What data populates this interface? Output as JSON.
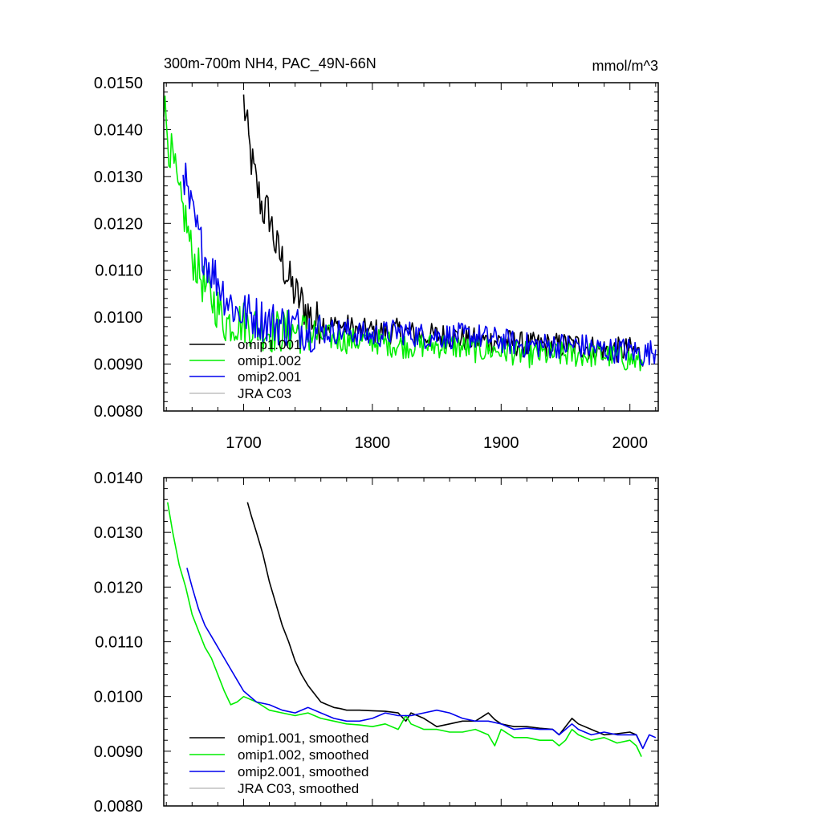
{
  "chart_data": [
    {
      "type": "line",
      "title": "300m-700m NH4, PAC_49N-66N",
      "units": "mmol/m^3",
      "xlim": [
        1638,
        2022
      ],
      "ylim": [
        0.008,
        0.015
      ],
      "x_ticks": [
        1700,
        1800,
        1900,
        2000
      ],
      "x_tick_labels": [
        "1700",
        "1800",
        "1900",
        "2000"
      ],
      "y_ticks": [
        0.008,
        0.009,
        0.01,
        0.011,
        0.012,
        0.013,
        0.014,
        0.015
      ],
      "y_tick_labels": [
        "0.0080",
        "0.0090",
        "0.0100",
        "0.0110",
        "0.0120",
        "0.0130",
        "0.0140",
        "0.0150"
      ],
      "grid": false,
      "legend_position": "bottom-left",
      "noisy": true,
      "series": [
        {
          "name": "omip1.001",
          "color": "#000000",
          "points": [
            [
              1700,
              0.0146
            ],
            [
              1705,
              0.0135
            ],
            [
              1710,
              0.0128
            ],
            [
              1715,
              0.0123
            ],
            [
              1720,
              0.0122
            ],
            [
              1725,
              0.0115
            ],
            [
              1730,
              0.0112
            ],
            [
              1735,
              0.0108
            ],
            [
              1740,
              0.0105
            ],
            [
              1745,
              0.0103
            ],
            [
              1750,
              0.0101
            ],
            [
              1755,
              0.0099
            ],
            [
              1760,
              0.0099
            ],
            [
              1770,
              0.0098
            ],
            [
              1780,
              0.0098
            ],
            [
              1790,
              0.0097
            ],
            [
              1800,
              0.0097
            ],
            [
              1820,
              0.0097
            ],
            [
              1840,
              0.0096
            ],
            [
              1860,
              0.0096
            ],
            [
              1880,
              0.0095
            ],
            [
              1900,
              0.0095
            ],
            [
              1920,
              0.0094
            ],
            [
              1940,
              0.0094
            ],
            [
              1960,
              0.0094
            ],
            [
              1980,
              0.0093
            ],
            [
              2000,
              0.0093
            ],
            [
              2010,
              0.0092
            ]
          ]
        },
        {
          "name": "omip1.002",
          "color": "#00ee00",
          "points": [
            [
              1638,
              0.0146
            ],
            [
              1642,
              0.0137
            ],
            [
              1646,
              0.0132
            ],
            [
              1650,
              0.0125
            ],
            [
              1655,
              0.0121
            ],
            [
              1660,
              0.0113
            ],
            [
              1665,
              0.011
            ],
            [
              1670,
              0.0106
            ],
            [
              1675,
              0.0104
            ],
            [
              1680,
              0.0102
            ],
            [
              1685,
              0.0099
            ],
            [
              1690,
              0.0099
            ],
            [
              1700,
              0.0099
            ],
            [
              1710,
              0.0098
            ],
            [
              1720,
              0.0097
            ],
            [
              1740,
              0.0097
            ],
            [
              1760,
              0.0096
            ],
            [
              1780,
              0.0095
            ],
            [
              1800,
              0.0095
            ],
            [
              1820,
              0.0094
            ],
            [
              1840,
              0.0094
            ],
            [
              1860,
              0.0094
            ],
            [
              1880,
              0.0093
            ],
            [
              1900,
              0.0093
            ],
            [
              1920,
              0.0092
            ],
            [
              1940,
              0.0092
            ],
            [
              1960,
              0.0092
            ],
            [
              1980,
              0.0092
            ],
            [
              2000,
              0.0091
            ],
            [
              2010,
              0.009
            ]
          ]
        },
        {
          "name": "omip2.001",
          "color": "#0000ee",
          "points": [
            [
              1653,
              0.0133
            ],
            [
              1656,
              0.0126
            ],
            [
              1660,
              0.0122
            ],
            [
              1665,
              0.0117
            ],
            [
              1670,
              0.0113
            ],
            [
              1675,
              0.011
            ],
            [
              1680,
              0.0108
            ],
            [
              1685,
              0.0105
            ],
            [
              1690,
              0.0103
            ],
            [
              1695,
              0.0101
            ],
            [
              1700,
              0.0101
            ],
            [
              1720,
              0.0099
            ],
            [
              1740,
              0.0098
            ],
            [
              1760,
              0.0097
            ],
            [
              1780,
              0.0097
            ],
            [
              1800,
              0.0096
            ],
            [
              1820,
              0.0097
            ],
            [
              1840,
              0.0096
            ],
            [
              1860,
              0.0096
            ],
            [
              1880,
              0.0096
            ],
            [
              1900,
              0.0095
            ],
            [
              1920,
              0.0094
            ],
            [
              1940,
              0.0094
            ],
            [
              1960,
              0.0094
            ],
            [
              1980,
              0.0093
            ],
            [
              2000,
              0.0093
            ],
            [
              2010,
              0.0092
            ],
            [
              2020,
              0.0093
            ]
          ]
        },
        {
          "name": "JRA C03",
          "color": "#c0c0c0",
          "points": []
        }
      ]
    },
    {
      "type": "line",
      "xlim": [
        1638,
        2022
      ],
      "ylim": [
        0.008,
        0.014
      ],
      "x_ticks": [
        1700,
        1800,
        1900,
        2000
      ],
      "y_ticks": [
        0.008,
        0.009,
        0.01,
        0.011,
        0.012,
        0.013,
        0.014
      ],
      "y_tick_labels": [
        "0.0080",
        "0.0090",
        "0.0100",
        "0.0110",
        "0.0120",
        "0.0130",
        "0.0140"
      ],
      "grid": false,
      "legend_position": "bottom-left",
      "noisy": false,
      "series": [
        {
          "name": "omip1.001, smoothed",
          "color": "#000000",
          "points": [
            [
              1703,
              0.01355
            ],
            [
              1706,
              0.0133
            ],
            [
              1710,
              0.013
            ],
            [
              1715,
              0.0126
            ],
            [
              1720,
              0.0121
            ],
            [
              1725,
              0.0117
            ],
            [
              1730,
              0.0113
            ],
            [
              1735,
              0.011
            ],
            [
              1740,
              0.01065
            ],
            [
              1745,
              0.0104
            ],
            [
              1750,
              0.0102
            ],
            [
              1755,
              0.01005
            ],
            [
              1760,
              0.0099
            ],
            [
              1765,
              0.00985
            ],
            [
              1770,
              0.0098
            ],
            [
              1775,
              0.00978
            ],
            [
              1780,
              0.00975
            ],
            [
              1790,
              0.00975
            ],
            [
              1800,
              0.00974
            ],
            [
              1810,
              0.00973
            ],
            [
              1820,
              0.0097
            ],
            [
              1826,
              0.00955
            ],
            [
              1830,
              0.0097
            ],
            [
              1840,
              0.0096
            ],
            [
              1850,
              0.00945
            ],
            [
              1860,
              0.0095
            ],
            [
              1870,
              0.00955
            ],
            [
              1880,
              0.00955
            ],
            [
              1890,
              0.0097
            ],
            [
              1895,
              0.00958
            ],
            [
              1900,
              0.0095
            ],
            [
              1910,
              0.00945
            ],
            [
              1920,
              0.00945
            ],
            [
              1930,
              0.00942
            ],
            [
              1940,
              0.0094
            ],
            [
              1945,
              0.0093
            ],
            [
              1950,
              0.00945
            ],
            [
              1955,
              0.0096
            ],
            [
              1960,
              0.0095
            ],
            [
              1970,
              0.0094
            ],
            [
              1980,
              0.0093
            ],
            [
              1990,
              0.00932
            ],
            [
              2000,
              0.00935
            ],
            [
              2005,
              0.0093
            ],
            [
              2009,
              0.0091
            ]
          ]
        },
        {
          "name": "omip1.002, smoothed",
          "color": "#00ee00",
          "points": [
            [
              1641,
              0.01355
            ],
            [
              1645,
              0.013
            ],
            [
              1650,
              0.0124
            ],
            [
              1655,
              0.012
            ],
            [
              1660,
              0.0115
            ],
            [
              1665,
              0.0112
            ],
            [
              1670,
              0.0109
            ],
            [
              1675,
              0.0107
            ],
            [
              1680,
              0.0104
            ],
            [
              1685,
              0.0101
            ],
            [
              1690,
              0.00985
            ],
            [
              1695,
              0.0099
            ],
            [
              1700,
              0.01
            ],
            [
              1710,
              0.0099
            ],
            [
              1720,
              0.00975
            ],
            [
              1730,
              0.0097
            ],
            [
              1740,
              0.00965
            ],
            [
              1750,
              0.0097
            ],
            [
              1760,
              0.0096
            ],
            [
              1770,
              0.00955
            ],
            [
              1780,
              0.0095
            ],
            [
              1790,
              0.00948
            ],
            [
              1800,
              0.00945
            ],
            [
              1810,
              0.0095
            ],
            [
              1820,
              0.0094
            ],
            [
              1826,
              0.00965
            ],
            [
              1830,
              0.0095
            ],
            [
              1840,
              0.0094
            ],
            [
              1850,
              0.0094
            ],
            [
              1860,
              0.00935
            ],
            [
              1870,
              0.00935
            ],
            [
              1880,
              0.0094
            ],
            [
              1890,
              0.0093
            ],
            [
              1895,
              0.0091
            ],
            [
              1900,
              0.0094
            ],
            [
              1910,
              0.00925
            ],
            [
              1920,
              0.00925
            ],
            [
              1930,
              0.0092
            ],
            [
              1940,
              0.0092
            ],
            [
              1945,
              0.0091
            ],
            [
              1950,
              0.0092
            ],
            [
              1955,
              0.0094
            ],
            [
              1960,
              0.0093
            ],
            [
              1970,
              0.0092
            ],
            [
              1980,
              0.00925
            ],
            [
              1990,
              0.00915
            ],
            [
              2000,
              0.0092
            ],
            [
              2005,
              0.0091
            ],
            [
              2009,
              0.0089
            ]
          ]
        },
        {
          "name": "omip2.001, smoothed",
          "color": "#0000ee",
          "points": [
            [
              1656,
              0.01235
            ],
            [
              1660,
              0.012
            ],
            [
              1665,
              0.0116
            ],
            [
              1670,
              0.0113
            ],
            [
              1675,
              0.0111
            ],
            [
              1680,
              0.0109
            ],
            [
              1685,
              0.0107
            ],
            [
              1690,
              0.0105
            ],
            [
              1695,
              0.0103
            ],
            [
              1700,
              0.0101
            ],
            [
              1710,
              0.0099
            ],
            [
              1720,
              0.00985
            ],
            [
              1730,
              0.00975
            ],
            [
              1740,
              0.0097
            ],
            [
              1750,
              0.0098
            ],
            [
              1760,
              0.0097
            ],
            [
              1770,
              0.0096
            ],
            [
              1780,
              0.00955
            ],
            [
              1790,
              0.00955
            ],
            [
              1800,
              0.0096
            ],
            [
              1810,
              0.0097
            ],
            [
              1820,
              0.00965
            ],
            [
              1830,
              0.00965
            ],
            [
              1840,
              0.0097
            ],
            [
              1850,
              0.00975
            ],
            [
              1860,
              0.0097
            ],
            [
              1870,
              0.0096
            ],
            [
              1880,
              0.00955
            ],
            [
              1890,
              0.00955
            ],
            [
              1900,
              0.0095
            ],
            [
              1910,
              0.0094
            ],
            [
              1920,
              0.00942
            ],
            [
              1930,
              0.0094
            ],
            [
              1940,
              0.0094
            ],
            [
              1945,
              0.0093
            ],
            [
              1950,
              0.0094
            ],
            [
              1955,
              0.0095
            ],
            [
              1960,
              0.0094
            ],
            [
              1970,
              0.0093
            ],
            [
              1980,
              0.00935
            ],
            [
              1990,
              0.0093
            ],
            [
              2000,
              0.0093
            ],
            [
              2005,
              0.0093
            ],
            [
              2010,
              0.00905
            ],
            [
              2015,
              0.0093
            ],
            [
              2020,
              0.00925
            ]
          ]
        },
        {
          "name": "JRA C03, smoothed",
          "color": "#c0c0c0",
          "points": []
        }
      ]
    }
  ]
}
